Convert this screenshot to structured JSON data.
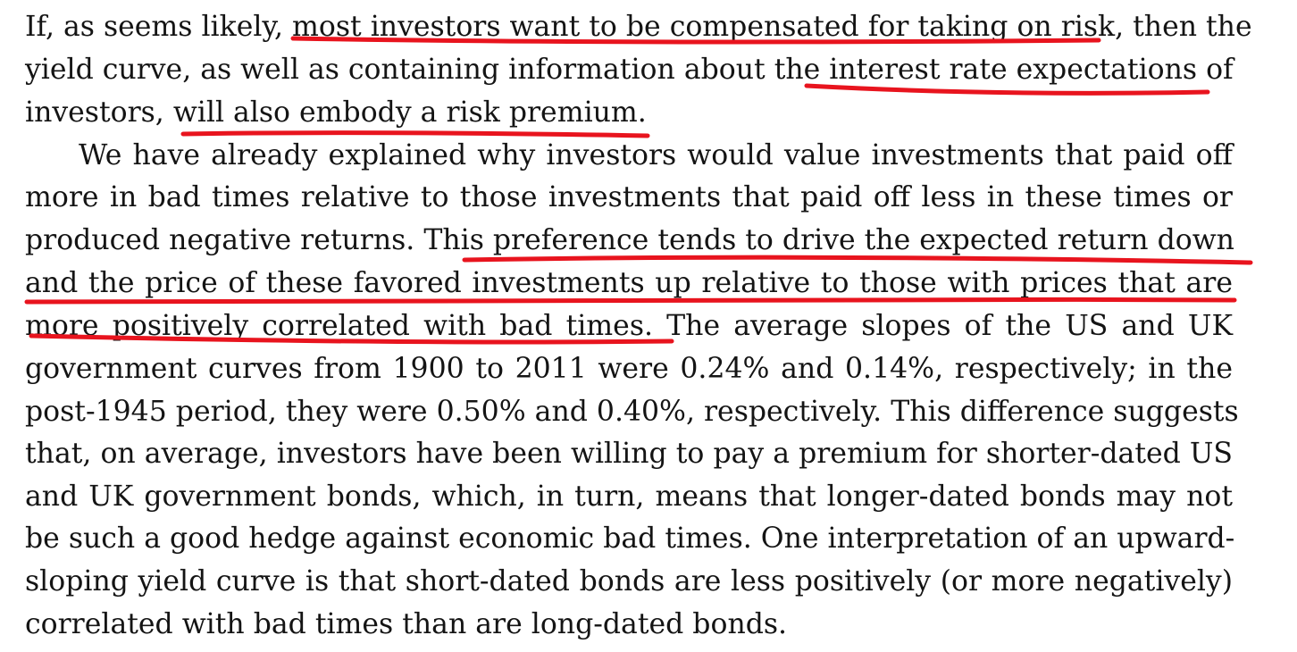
{
  "document": {
    "lines": [
      "If, as seems likely, most investors want to be compensated for taking on risk, then the",
      "yield curve, as well as containing information about the interest rate expectations of",
      "investors, will also embody a risk premium.",
      "We have already explained why investors would value investments that paid off",
      "more in bad times relative to those investments that paid off less in these times or",
      "produced negative returns. This preference tends to drive the expected return down",
      "and the price of these favored investments up relative to those with prices that are",
      "more positively correlated with bad times. The average slopes of the US and UK",
      "government curves from 1900 to 2011 were 0.24% and 0.14%, respectively; in the",
      "post-1945 period, they were 0.50% and 0.40%, respectively. This difference suggests",
      "that, on average, investors have been willing to pay a premium for shorter-dated US",
      "and UK government bonds, which, in turn, means that longer-dated bonds may not",
      "be such a good hedge against economic bad times. One interpretation of an upward-",
      "sloping yield curve is that short-dated bonds are less positively (or more negatively)",
      "correlated with bad times than are long-dated bonds."
    ]
  },
  "annotation": {
    "underline_color": "#e8141e",
    "underlined_phrases": [
      "most investors want to be compensated for taking on risk",
      "interest rate expectations",
      "will also embody a risk premium",
      "This preference tends to drive the expected return down",
      "and the price of these favored investments up relative to those with prices that are",
      "more positively correlated with bad times"
    ]
  }
}
